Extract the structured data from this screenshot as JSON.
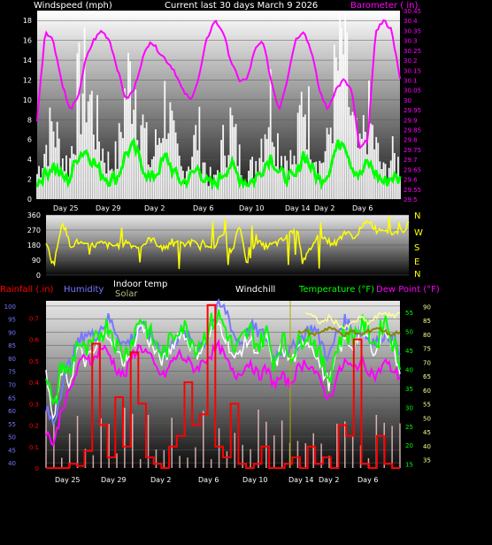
{
  "header": {
    "wind_title": "Windspeed (mph)",
    "main_title": "Current last 30 days March 9 2026",
    "baro_title": "Barometer ( in)"
  },
  "day_labels": [
    "Day 25",
    "Day 29",
    "Day 2",
    "Day 6",
    "Day 10",
    "Day 14",
    "Day 2",
    "Day 6"
  ],
  "colors": {
    "wind": "#ffffff",
    "gust_band": "#00ff00",
    "barometer": "#ff00ff",
    "direction": "#ffff00",
    "rain": "#ff0000",
    "humidity": "#7777ff",
    "indoor_temp": "#ffffff",
    "solar": "#ffcccc",
    "windchill": "#ffffff",
    "temperature": "#00ff00",
    "dewpoint": "#ff00ff",
    "indoor": "#ffff99",
    "olive": "#888800"
  },
  "chart_data": [
    {
      "type": "line",
      "title": "Current last 30 days March 9 2026",
      "ylabel": "Windspeed (mph)",
      "ylabel_right": "Barometer ( in)",
      "ylim": [
        0,
        19
      ],
      "ylim_right": [
        29.5,
        30.45
      ],
      "yticks": [
        "0",
        "2",
        "4",
        "6",
        "8",
        "10",
        "12",
        "14",
        "16",
        "18"
      ],
      "yticks_right": [
        "29.5",
        "29.55",
        "29.6",
        "29.65",
        "29.7",
        "29.75",
        "29.8",
        "29.85",
        "29.9",
        "29.95",
        "30",
        "30.05",
        "30.1",
        "30.15",
        "30.2",
        "30.25",
        "30.3",
        "30.35",
        "30.4",
        "30.45"
      ],
      "xticks": [
        "Day 25",
        "Day 29",
        "Day 2",
        "Day 6",
        "Day 10",
        "Day 14",
        "Day 2",
        "Day 6"
      ],
      "series": [
        {
          "values": [
            3,
            6,
            9,
            5,
            4,
            12,
            14,
            10,
            6,
            4,
            5,
            13,
            15,
            9,
            4,
            7,
            12,
            6,
            3,
            5,
            8,
            3,
            2,
            6,
            9,
            5,
            3,
            4,
            8,
            12,
            6,
            5,
            4,
            13,
            8,
            4,
            6,
            14,
            18,
            9,
            5,
            10,
            6,
            3,
            5,
            4
          ]
        },
        {
          "values": [
            29.9,
            30.35,
            30.3,
            30.1,
            29.95,
            30.0,
            30.2,
            30.3,
            30.35,
            30.3,
            30.15,
            30.0,
            30.05,
            30.2,
            30.3,
            30.25,
            30.2,
            30.15,
            30.05,
            30.0,
            30.1,
            30.3,
            30.4,
            30.35,
            30.2,
            30.1,
            30.1,
            30.25,
            30.3,
            30.1,
            29.95,
            30.1,
            30.3,
            30.35,
            30.25,
            30.05,
            29.95,
            30.05,
            30.1,
            30.05,
            29.75,
            29.8,
            30.35,
            30.4,
            30.35,
            30.1
          ]
        }
      ]
    },
    {
      "type": "line",
      "ylim": [
        0,
        360
      ],
      "yticks": [
        "0",
        "90",
        "180",
        "270",
        "360"
      ],
      "compass_labels": [
        "N",
        "W",
        "S",
        "E",
        "N"
      ],
      "series": [
        {
          "values": [
            190,
            60,
            330,
            180,
            200,
            170,
            180,
            190,
            175,
            180,
            200,
            170,
            180,
            220,
            180,
            170,
            190,
            180,
            200,
            170,
            185,
            180,
            250,
            120,
            300,
            60,
            210,
            170,
            180,
            200,
            230,
            300,
            80,
            180,
            250,
            200,
            190,
            260,
            230,
            270,
            330,
            270,
            280,
            250,
            260,
            300
          ]
        }
      ]
    },
    {
      "type": "line",
      "legend": [
        "Rainfall (.in)",
        "Humidity",
        "Indoor temp",
        "Solar",
        "Windchill",
        "Temperature (°F)",
        "Dew Point (°F)"
      ],
      "yticks_rain": [
        "0",
        "0.1",
        "0.2",
        "0.3",
        "0.4",
        "0.5",
        "0.6",
        "0.7"
      ],
      "yticks_humidity": [
        "40",
        "45",
        "50",
        "55",
        "60",
        "65",
        "70",
        "75",
        "80",
        "85",
        "90",
        "95",
        "100"
      ],
      "yticks_temp": [
        "15",
        "20",
        "25",
        "30",
        "35",
        "40",
        "45",
        "50",
        "55"
      ],
      "yticks_indoor": [
        "35",
        "40",
        "45",
        "50",
        "55",
        "60",
        "65",
        "70",
        "75",
        "80",
        "85",
        "90"
      ],
      "xticks": [
        "Day 25",
        "Day 29",
        "Day 2",
        "Day 6",
        "Day 10",
        "Day 14",
        "Day 2",
        "Day 6"
      ],
      "series": [
        {
          "name": "Temperature (°F)",
          "values": [
            40,
            28,
            42,
            38,
            48,
            44,
            46,
            50,
            52,
            46,
            44,
            48,
            54,
            50,
            46,
            44,
            48,
            52,
            50,
            46,
            48,
            52,
            54,
            50,
            44,
            48,
            50,
            46,
            50,
            42,
            48,
            44,
            46,
            50,
            48,
            42,
            38,
            46,
            50,
            48,
            52,
            50,
            46,
            54,
            48,
            42
          ]
        },
        {
          "name": "Dew Point (°F)",
          "values": [
            24,
            20,
            30,
            34,
            40,
            44,
            42,
            46,
            44,
            40,
            38,
            44,
            46,
            44,
            40,
            38,
            42,
            44,
            42,
            40,
            42,
            44,
            46,
            42,
            38,
            40,
            42,
            38,
            40,
            36,
            38,
            36,
            40,
            42,
            40,
            36,
            32,
            38,
            42,
            40,
            42,
            40,
            38,
            42,
            40,
            38
          ]
        },
        {
          "name": "Humidity",
          "values": [
            60,
            55,
            70,
            78,
            85,
            90,
            88,
            92,
            95,
            90,
            85,
            88,
            92,
            90,
            86,
            82,
            84,
            90,
            88,
            84,
            86,
            92,
            100,
            98,
            88,
            86,
            92,
            90,
            88,
            80,
            84,
            82,
            86,
            90,
            92,
            86,
            80,
            90,
            94,
            92,
            90,
            88,
            86,
            90,
            88,
            84
          ]
        },
        {
          "name": "Rainfall (.in)",
          "values": [
            0,
            0,
            0,
            0.02,
            0.01,
            0.08,
            0.58,
            0.2,
            0.05,
            0.33,
            0.1,
            0.54,
            0.3,
            0.05,
            0.02,
            0,
            0.1,
            0.15,
            0.4,
            0.2,
            0.25,
            0.76,
            0.1,
            0.05,
            0.3,
            0.02,
            0,
            0.02,
            0.1,
            0,
            0,
            0.02,
            0.05,
            0,
            0.1,
            0.02,
            0.05,
            0,
            0.2,
            0.15,
            0.6,
            0.02,
            0,
            0.15,
            0.02,
            0
          ]
        },
        {
          "name": "Indoor temp",
          "values": [
            35,
            35,
            35,
            35,
            35,
            35,
            35,
            35,
            35,
            35,
            35,
            35,
            35,
            35,
            35,
            35,
            35,
            35,
            35,
            35,
            35,
            35,
            35,
            35,
            35,
            35,
            35,
            35,
            35,
            35,
            35,
            35,
            35,
            88,
            86,
            84,
            86,
            84,
            82,
            84,
            86,
            84,
            86,
            88,
            86,
            88
          ]
        },
        {
          "name": "Olive",
          "values": [
            null,
            null,
            null,
            null,
            null,
            null,
            null,
            null,
            null,
            null,
            null,
            null,
            null,
            null,
            null,
            null,
            null,
            null,
            null,
            null,
            null,
            null,
            null,
            null,
            null,
            null,
            null,
            null,
            null,
            null,
            null,
            null,
            null,
            50,
            49,
            50,
            51,
            50,
            49,
            50,
            49,
            50,
            51,
            50,
            49,
            50
          ]
        }
      ]
    }
  ]
}
